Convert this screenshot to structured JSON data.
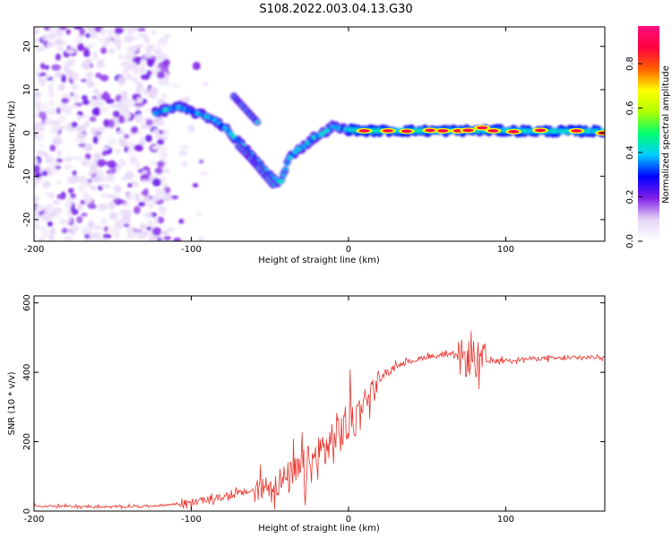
{
  "figure": {
    "title": "S108.2022.003.04.13.G30"
  },
  "chart_data": [
    {
      "type": "heatmap",
      "name": "spectrogram",
      "xlabel": "Height of straight line (km)",
      "ylabel": "Frequency (Hz)",
      "xlim": [
        -200,
        163
      ],
      "ylim": [
        -25,
        24.5
      ],
      "x_ticks": [
        -200,
        -100,
        0,
        100
      ],
      "x_tick_labels": [
        "-200",
        "-100",
        "0",
        "100"
      ],
      "y_ticks": [
        -20,
        -10,
        0,
        10,
        20
      ],
      "y_tick_labels": [
        "-20",
        "-10",
        "0",
        "10",
        "20"
      ],
      "ridge": {
        "x": [
          -123,
          -115,
          -108,
          -100,
          -92,
          -85,
          -78,
          -70,
          -62,
          -55,
          -48,
          -43,
          -38,
          -33,
          -28,
          -22,
          -18,
          -14,
          -10,
          -5,
          0,
          10,
          30,
          60,
          90,
          120,
          163
        ],
        "y": [
          4.5,
          5.5,
          6,
          5,
          4,
          3,
          1,
          -2,
          -5,
          -8,
          -10.5,
          -11.5,
          -6,
          -4,
          -3,
          -1,
          -0.5,
          0.5,
          1.5,
          1,
          0.8,
          0.5,
          0.5,
          0.5,
          0.6,
          0.4,
          0.4
        ]
      },
      "branch": {
        "x": [
          -73,
          -68,
          -63,
          -58
        ],
        "y": [
          8.5,
          6.5,
          4.5,
          2.5
        ]
      },
      "branch_lower": {
        "x": [
          -70,
          -62,
          -55,
          -48
        ],
        "y": [
          -3,
          -6,
          -9,
          -12
        ]
      },
      "hotspots": {
        "x": [
          10,
          25,
          37,
          52,
          60,
          70,
          76,
          85,
          92,
          105,
          122,
          145,
          162
        ],
        "y": [
          0.5,
          0.5,
          0.4,
          0.6,
          0.5,
          0.5,
          0.6,
          1.2,
          0.5,
          0.3,
          0.6,
          0.5,
          0
        ]
      }
    },
    {
      "type": "colorbar",
      "name": "amplitude-colorbar",
      "label": "Normalized spectral amplitude",
      "range": [
        0,
        0.97
      ],
      "ticks": [
        0,
        0.2,
        0.4,
        0.6,
        0.8
      ],
      "tick_labels": [
        "0.0",
        "0.2",
        "0.4",
        "0.6",
        "0.8"
      ],
      "colors": [
        "#ffffff",
        "#e6d6f7",
        "#8020e8",
        "#0000ff",
        "#00ccff",
        "#00ff70",
        "#b0ff00",
        "#ffff00",
        "#ff6000",
        "#ff0040",
        "#ff1080"
      ]
    },
    {
      "type": "line",
      "name": "snr-plot",
      "xlabel": "Height of straight line (km)",
      "ylabel": "SNR (10 * v/v)",
      "xlim": [
        -200,
        163
      ],
      "ylim": [
        0,
        620
      ],
      "x_ticks": [
        -200,
        -100,
        0,
        100
      ],
      "x_tick_labels": [
        "-200",
        "-100",
        "0",
        "100"
      ],
      "y_ticks": [
        0,
        200,
        400,
        600
      ],
      "y_tick_labels": [
        "0",
        "200",
        "400",
        "600"
      ],
      "series": [
        {
          "name": "SNR",
          "color": "#e8342d",
          "envelope_x": [
            -200,
            -150,
            -120,
            -100,
            -80,
            -60,
            -40,
            -25,
            -15,
            -10,
            -5,
            0,
            10,
            20,
            30,
            50,
            65,
            72,
            78,
            85,
            100,
            120,
            140,
            163
          ],
          "envelope_y": [
            15,
            12,
            16,
            25,
            40,
            60,
            90,
            130,
            180,
            200,
            230,
            250,
            320,
            380,
            420,
            445,
            450,
            440,
            440,
            430,
            435,
            440,
            440,
            445
          ]
        }
      ]
    }
  ]
}
